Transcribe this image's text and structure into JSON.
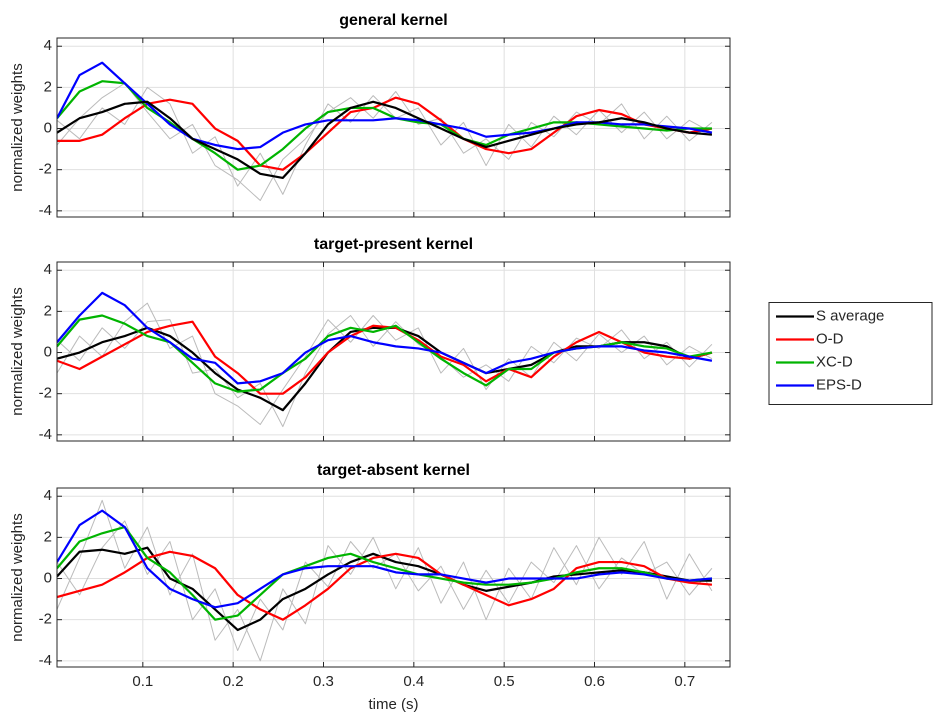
{
  "chart_data": [
    {
      "type": "line",
      "title": "general kernel",
      "y_label": "normalized weights",
      "x": [
        0.005,
        0.03,
        0.055,
        0.08,
        0.105,
        0.13,
        0.155,
        0.18,
        0.205,
        0.23,
        0.255,
        0.28,
        0.305,
        0.33,
        0.355,
        0.38,
        0.405,
        0.43,
        0.455,
        0.48,
        0.505,
        0.53,
        0.555,
        0.58,
        0.605,
        0.63,
        0.655,
        0.68,
        0.705,
        0.73
      ],
      "series": [
        {
          "color": "#bbbbbb",
          "values": [
            -0.8,
            0.5,
            1.5,
            2.2,
            0.8,
            -0.5,
            0.2,
            -1.8,
            -2.5,
            -3.5,
            -1.5,
            -0.5,
            0.8,
            1.5,
            0.5,
            1.8,
            0.2,
            0.5,
            -1.2,
            -0.5,
            -1.5,
            0.3,
            -0.4,
            0.8,
            0.2,
            1.2,
            -0.5,
            0.6,
            -0.6,
            0.3
          ]
        },
        {
          "color": "#bbbbbb",
          "values": [
            0.4,
            -0.5,
            1.0,
            0.2,
            2.0,
            1.2,
            -1.2,
            -0.4,
            -2.8,
            -1.2,
            -3.2,
            -0.8,
            1.2,
            0.3,
            1.6,
            0.5,
            1.0,
            -0.8,
            0.3,
            -1.8,
            0.2,
            -0.9,
            0.6,
            -0.3,
            0.9,
            -0.2,
            0.8,
            -0.5,
            0.4,
            -0.2
          ]
        },
        {
          "color": "#ff0000",
          "values": [
            -0.6,
            -0.6,
            -0.3,
            0.5,
            1.2,
            1.4,
            1.2,
            0,
            -0.6,
            -1.8,
            -2.0,
            -1.2,
            -0.2,
            0.8,
            1.0,
            1.5,
            1.2,
            0.4,
            -0.5,
            -1.0,
            -1.2,
            -1.0,
            -0.2,
            0.6,
            0.9,
            0.7,
            0.2,
            0,
            -0.2,
            0
          ]
        },
        {
          "color": "#00b400",
          "values": [
            0.5,
            1.8,
            2.3,
            2.2,
            1.0,
            0.3,
            -0.5,
            -1.2,
            -2.0,
            -1.8,
            -1.0,
            0,
            0.8,
            1.0,
            1.0,
            0.5,
            0.3,
            0.2,
            -0.5,
            -0.8,
            -0.3,
            0,
            0.3,
            0.3,
            0.2,
            0.1,
            0,
            -0.1,
            0,
            0
          ]
        },
        {
          "color": "#0000ff",
          "values": [
            0.5,
            2.6,
            3.2,
            2.2,
            1.2,
            0.2,
            -0.5,
            -0.8,
            -1.0,
            -0.9,
            -0.2,
            0.2,
            0.4,
            0.4,
            0.4,
            0.5,
            0.4,
            0.2,
            0,
            -0.4,
            -0.3,
            -0.2,
            0,
            0.3,
            0.3,
            0.2,
            0.2,
            0.1,
            0,
            -0.2
          ]
        },
        {
          "color": "#000000",
          "values": [
            -0.2,
            0.5,
            0.8,
            1.2,
            1.3,
            0.5,
            -0.5,
            -1.0,
            -1.5,
            -2.2,
            -2.4,
            -1.2,
            0.2,
            1.0,
            1.3,
            1.0,
            0.5,
            0,
            -0.5,
            -0.9,
            -0.6,
            -0.3,
            0,
            0.2,
            0.3,
            0.5,
            0.3,
            0,
            -0.2,
            -0.3
          ]
        }
      ],
      "xlim": [
        0.005,
        0.75
      ],
      "xticks": [
        0.1,
        0.2,
        0.3,
        0.4,
        0.5,
        0.6,
        0.7
      ],
      "ylim": [
        -4.3,
        4.4
      ],
      "yticks": [
        -4,
        -2,
        0,
        2,
        4
      ],
      "grid": true
    },
    {
      "type": "line",
      "title": "target-present kernel",
      "y_label": "normalized weights",
      "x": [
        0.005,
        0.03,
        0.055,
        0.08,
        0.105,
        0.13,
        0.155,
        0.18,
        0.205,
        0.23,
        0.255,
        0.28,
        0.305,
        0.33,
        0.355,
        0.38,
        0.405,
        0.43,
        0.455,
        0.48,
        0.505,
        0.53,
        0.555,
        0.58,
        0.605,
        0.63,
        0.655,
        0.68,
        0.705,
        0.73
      ],
      "series": [
        {
          "color": "#bbbbbb",
          "values": [
            -1.0,
            0.8,
            -0.2,
            1.5,
            2.4,
            0.2,
            0.8,
            -2.0,
            -2.6,
            -3.5,
            -1.8,
            -0.2,
            1.6,
            0.5,
            1.8,
            0.6,
            1.2,
            -1.0,
            0.2,
            -1.8,
            -0.3,
            -1.2,
            0.5,
            -0.4,
            0.9,
            0.0,
            0.8,
            -0.6,
            0.3,
            -0.3
          ]
        },
        {
          "color": "#bbbbbb",
          "values": [
            0.6,
            -0.4,
            1.2,
            0.2,
            1.5,
            1.6,
            -1.0,
            -0.8,
            -2.2,
            -1.5,
            -3.6,
            -1.0,
            0.9,
            1.8,
            0.3,
            1.5,
            0.4,
            -0.2,
            -1.2,
            -0.6,
            -1.4,
            0.3,
            -0.5,
            0.7,
            0.2,
            1.1,
            -0.3,
            0.5,
            -0.7,
            0.4
          ]
        },
        {
          "name": "S average",
          "color": "#000000",
          "values": [
            -0.3,
            0,
            0.5,
            0.8,
            1.2,
            0.8,
            0,
            -1.0,
            -1.8,
            -2.2,
            -2.8,
            -1.5,
            0,
            1.0,
            1.2,
            1.2,
            0.8,
            0,
            -0.5,
            -1.0,
            -0.8,
            -0.6,
            0,
            0.3,
            0.3,
            0.5,
            0.5,
            0.3,
            -0.3,
            0
          ]
        },
        {
          "name": "O-D",
          "color": "#ff0000",
          "values": [
            -0.4,
            -0.8,
            -0.2,
            0.4,
            1.0,
            1.3,
            1.5,
            -0.2,
            -1.0,
            -2.0,
            -2.0,
            -1.2,
            0,
            0.8,
            1.3,
            1.2,
            0.6,
            -0.2,
            -0.6,
            -1.4,
            -0.8,
            -1.2,
            -0.2,
            0.5,
            1.0,
            0.5,
            0,
            -0.2,
            -0.3,
            0
          ]
        },
        {
          "name": "XC-D",
          "color": "#00b400",
          "values": [
            0.3,
            1.6,
            1.8,
            1.4,
            0.8,
            0.5,
            -0.5,
            -1.5,
            -1.9,
            -1.8,
            -1.0,
            -0.3,
            0.8,
            1.2,
            1.0,
            1.3,
            0.5,
            -0.3,
            -1.0,
            -1.6,
            -0.8,
            -0.8,
            0,
            0.2,
            0.3,
            0.5,
            0.3,
            0.2,
            -0.2,
            0
          ]
        },
        {
          "name": "EPS-D",
          "color": "#0000ff",
          "values": [
            0.5,
            1.8,
            2.9,
            2.3,
            1.2,
            0.5,
            -0.3,
            -0.5,
            -1.5,
            -1.4,
            -1.0,
            0,
            0.6,
            0.8,
            0.5,
            0.3,
            0.2,
            0,
            -0.5,
            -1.0,
            -0.5,
            -0.3,
            0,
            0.2,
            0.3,
            0.3,
            0.1,
            0,
            -0.2,
            -0.4
          ]
        }
      ],
      "legend": "right",
      "xlim": [
        0.005,
        0.75
      ],
      "xticks": [
        0.1,
        0.2,
        0.3,
        0.4,
        0.5,
        0.6,
        0.7
      ],
      "ylim": [
        -4.3,
        4.4
      ],
      "yticks": [
        -4,
        -2,
        0,
        2,
        4
      ],
      "grid": true
    },
    {
      "type": "line",
      "title": "target-absent kernel",
      "y_label": "normalized weights",
      "x_label": "time (s)",
      "x": [
        0.005,
        0.03,
        0.055,
        0.08,
        0.105,
        0.13,
        0.155,
        0.18,
        0.205,
        0.23,
        0.255,
        0.28,
        0.305,
        0.33,
        0.355,
        0.38,
        0.405,
        0.43,
        0.455,
        0.48,
        0.505,
        0.53,
        0.555,
        0.58,
        0.605,
        0.63,
        0.655,
        0.68,
        0.705,
        0.73
      ],
      "series": [
        {
          "color": "#bbbbbb",
          "values": [
            -1.5,
            1.0,
            3.8,
            0.5,
            2.5,
            -0.8,
            1.2,
            -3.0,
            -1.5,
            -4.0,
            -0.5,
            -2.2,
            1.6,
            0.2,
            2.0,
            -0.5,
            1.5,
            -1.2,
            0.8,
            -2.0,
            0.5,
            -1.0,
            1.5,
            -0.3,
            2.0,
            0.2,
            1.8,
            -1.0,
            1.2,
            -0.6
          ]
        },
        {
          "color": "#bbbbbb",
          "values": [
            0.8,
            -0.8,
            1.5,
            2.8,
            0.2,
            1.8,
            -2.0,
            -0.5,
            -3.5,
            -1.0,
            -2.5,
            0.8,
            -0.4,
            1.8,
            0.5,
            1.2,
            -0.6,
            0.6,
            -1.5,
            0.4,
            -1.2,
            0.8,
            -0.2,
            1.6,
            -0.5,
            1.0,
            0.2,
            0.8,
            -0.8,
            0.5
          ]
        },
        {
          "color": "#000000",
          "values": [
            0.1,
            1.3,
            1.4,
            1.2,
            1.5,
            0,
            -0.5,
            -1.5,
            -2.5,
            -2.0,
            -1.0,
            -0.5,
            0.2,
            0.8,
            1.2,
            0.8,
            0.6,
            0.2,
            -0.3,
            -0.6,
            -0.4,
            -0.2,
            0.1,
            0.2,
            0.3,
            0.4,
            0.3,
            0.1,
            -0.1,
            -0.1
          ]
        },
        {
          "color": "#ff0000",
          "values": [
            -0.9,
            -0.6,
            -0.3,
            0.3,
            1.0,
            1.3,
            1.1,
            0.5,
            -0.8,
            -1.5,
            -2.0,
            -1.3,
            -0.5,
            0.5,
            1.0,
            1.2,
            1.0,
            0.2,
            -0.3,
            -0.8,
            -1.3,
            -1.0,
            -0.5,
            0.5,
            0.8,
            0.8,
            0.6,
            0,
            -0.2,
            -0.3
          ]
        },
        {
          "color": "#00b400",
          "values": [
            0.5,
            1.8,
            2.2,
            2.5,
            1.0,
            0.3,
            -0.8,
            -2.0,
            -1.8,
            -0.8,
            0.2,
            0.6,
            1.0,
            1.2,
            0.8,
            0.5,
            0.2,
            0,
            -0.2,
            -0.3,
            -0.3,
            -0.2,
            0,
            0.3,
            0.5,
            0.5,
            0.3,
            0,
            -0.1,
            0
          ]
        },
        {
          "color": "#0000ff",
          "values": [
            0.8,
            2.6,
            3.3,
            2.5,
            0.5,
            -0.5,
            -1.0,
            -1.4,
            -1.2,
            -0.5,
            0.2,
            0.5,
            0.6,
            0.6,
            0.6,
            0.3,
            0.2,
            0.2,
            0,
            -0.2,
            0,
            0,
            0,
            0,
            0.2,
            0.3,
            0.2,
            0,
            -0.1,
            0
          ]
        }
      ],
      "xlim": [
        0.005,
        0.75
      ],
      "xticks": [
        0.1,
        0.2,
        0.3,
        0.4,
        0.5,
        0.6,
        0.7
      ],
      "ylim": [
        -4.3,
        4.4
      ],
      "yticks": [
        -4,
        -2,
        0,
        2,
        4
      ],
      "grid": true
    }
  ]
}
